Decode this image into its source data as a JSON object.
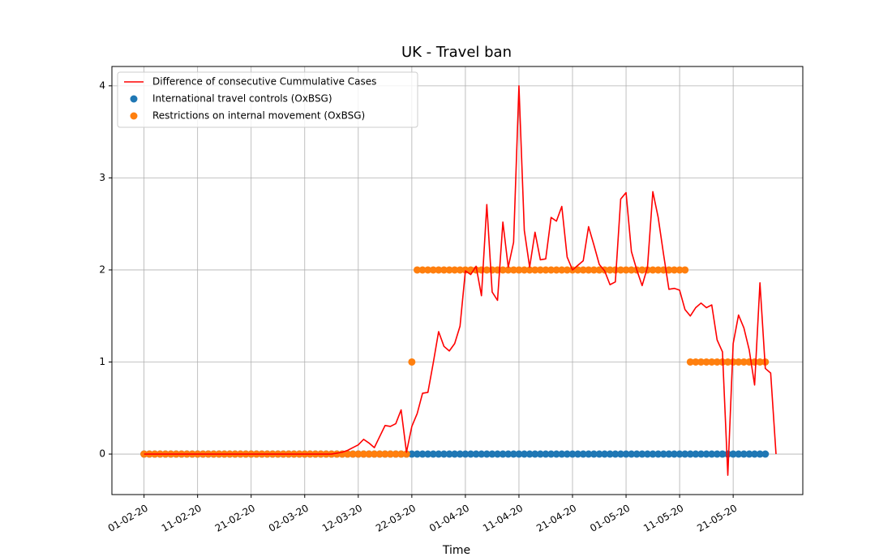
{
  "chart_data": {
    "type": "line",
    "title": "UK - Travel ban",
    "xlabel": "Time",
    "x": [
      "01-02-20",
      "02-02-20",
      "03-02-20",
      "04-02-20",
      "05-02-20",
      "06-02-20",
      "07-02-20",
      "08-02-20",
      "09-02-20",
      "10-02-20",
      "11-02-20",
      "12-02-20",
      "13-02-20",
      "14-02-20",
      "15-02-20",
      "16-02-20",
      "17-02-20",
      "18-02-20",
      "19-02-20",
      "20-02-20",
      "21-02-20",
      "22-02-20",
      "23-02-20",
      "24-02-20",
      "25-02-20",
      "26-02-20",
      "27-02-20",
      "28-02-20",
      "29-02-20",
      "01-03-20",
      "02-03-20",
      "03-03-20",
      "04-03-20",
      "05-03-20",
      "06-03-20",
      "07-03-20",
      "08-03-20",
      "09-03-20",
      "10-03-20",
      "11-03-20",
      "12-03-20",
      "13-03-20",
      "14-03-20",
      "15-03-20",
      "16-03-20",
      "17-03-20",
      "18-03-20",
      "19-03-20",
      "20-03-20",
      "21-03-20",
      "22-03-20",
      "23-03-20",
      "24-03-20",
      "25-03-20",
      "26-03-20",
      "27-03-20",
      "28-03-20",
      "29-03-20",
      "30-03-20",
      "31-03-20",
      "01-04-20",
      "02-04-20",
      "03-04-20",
      "04-04-20",
      "05-04-20",
      "06-04-20",
      "07-04-20",
      "08-04-20",
      "09-04-20",
      "10-04-20",
      "11-04-20",
      "12-04-20",
      "13-04-20",
      "14-04-20",
      "15-04-20",
      "16-04-20",
      "17-04-20",
      "18-04-20",
      "19-04-20",
      "20-04-20",
      "21-04-20",
      "22-04-20",
      "23-04-20",
      "24-04-20",
      "25-04-20",
      "26-04-20",
      "27-04-20",
      "28-04-20",
      "29-04-20",
      "30-04-20",
      "01-05-20",
      "02-05-20",
      "03-05-20",
      "04-05-20",
      "05-05-20",
      "06-05-20",
      "07-05-20",
      "08-05-20",
      "09-05-20",
      "10-05-20",
      "11-05-20",
      "12-05-20",
      "13-05-20",
      "14-05-20",
      "15-05-20",
      "16-05-20",
      "17-05-20",
      "18-05-20",
      "19-05-20",
      "20-05-20",
      "21-05-20",
      "22-05-20",
      "23-05-20",
      "24-05-20",
      "25-05-20",
      "26-05-20",
      "27-05-20",
      "28-05-20",
      "29-05-20"
    ],
    "series": [
      {
        "name": "Difference of consecutive Cummulative Cases",
        "type": "line",
        "color": "#ff0000",
        "values": [
          0,
          0,
          0,
          0,
          0,
          0,
          0,
          0,
          0,
          0,
          0,
          0,
          0,
          0,
          0,
          0,
          0,
          0,
          0,
          0,
          0,
          0,
          0,
          0,
          0,
          0,
          0,
          0,
          0,
          0,
          0,
          0,
          0,
          0,
          0,
          0,
          0.01,
          0.02,
          0.04,
          0.07,
          0.1,
          0.16,
          0.12,
          0.07,
          0.19,
          0.31,
          0.3,
          0.33,
          0.48,
          0.02,
          0.3,
          0.44,
          0.66,
          0.67,
          0.99,
          1.33,
          1.17,
          1.12,
          1.2,
          1.39,
          1.99,
          1.95,
          2.04,
          1.72,
          2.71,
          1.76,
          1.67,
          2.52,
          2.03,
          2.3,
          4.0,
          2.43,
          2.03,
          2.41,
          2.11,
          2.12,
          2.57,
          2.53,
          2.69,
          2.14,
          2.0,
          2.05,
          2.1,
          2.47,
          2.27,
          2.06,
          1.99,
          1.84,
          1.87,
          2.77,
          2.84,
          2.2,
          2.0,
          1.83,
          2.03,
          2.85,
          2.57,
          2.17,
          1.79,
          1.8,
          1.78,
          1.57,
          1.5,
          1.59,
          1.64,
          1.59,
          1.62,
          1.24,
          1.11,
          -0.23,
          1.2,
          1.51,
          1.37,
          1.13,
          0.75,
          1.86,
          0.93,
          0.88,
          0
        ]
      },
      {
        "name": "International travel controls (OxBSG)",
        "type": "scatter",
        "color": "#1f77b4",
        "values": [
          0,
          0,
          0,
          0,
          0,
          0,
          0,
          0,
          0,
          0,
          0,
          0,
          0,
          0,
          0,
          0,
          0,
          0,
          0,
          0,
          0,
          0,
          0,
          0,
          0,
          0,
          0,
          0,
          0,
          0,
          0,
          0,
          0,
          0,
          0,
          0,
          0,
          0,
          0,
          0,
          0,
          0,
          0,
          0,
          0,
          0,
          0,
          0,
          0,
          0,
          0,
          0,
          0,
          0,
          0,
          0,
          0,
          0,
          0,
          0,
          0,
          0,
          0,
          0,
          0,
          0,
          0,
          0,
          0,
          0,
          0,
          0,
          0,
          0,
          0,
          0,
          0,
          0,
          0,
          0,
          0,
          0,
          0,
          0,
          0,
          0,
          0,
          0,
          0,
          0,
          0,
          0,
          0,
          0,
          0,
          0,
          0,
          0,
          0,
          0,
          0,
          0,
          0,
          0,
          0,
          0,
          0,
          0,
          0,
          0,
          0,
          0,
          0,
          0,
          0,
          0,
          0,
          null,
          null
        ]
      },
      {
        "name": "Restrictions on internal movement (OxBSG)",
        "type": "scatter",
        "color": "#ff7f0e",
        "values": [
          0,
          0,
          0,
          0,
          0,
          0,
          0,
          0,
          0,
          0,
          0,
          0,
          0,
          0,
          0,
          0,
          0,
          0,
          0,
          0,
          0,
          0,
          0,
          0,
          0,
          0,
          0,
          0,
          0,
          0,
          0,
          0,
          0,
          0,
          0,
          0,
          0,
          0,
          0,
          0,
          0,
          0,
          0,
          0,
          0,
          0,
          0,
          0,
          0,
          0,
          1,
          2,
          2,
          2,
          2,
          2,
          2,
          2,
          2,
          2,
          2,
          2,
          2,
          2,
          2,
          2,
          2,
          2,
          2,
          2,
          2,
          2,
          2,
          2,
          2,
          2,
          2,
          2,
          2,
          2,
          2,
          2,
          2,
          2,
          2,
          2,
          2,
          2,
          2,
          2,
          2,
          2,
          2,
          2,
          2,
          2,
          2,
          2,
          2,
          2,
          2,
          2,
          1,
          1,
          1,
          1,
          1,
          1,
          1,
          1,
          1,
          1,
          1,
          1,
          1,
          1,
          1,
          null,
          null
        ]
      }
    ],
    "xlim": [
      "26-01-20",
      "03-06-20"
    ],
    "xticks": [
      "01-02-20",
      "11-02-20",
      "21-02-20",
      "02-03-20",
      "12-03-20",
      "22-03-20",
      "01-04-20",
      "11-04-20",
      "21-04-20",
      "01-05-20",
      "11-05-20",
      "21-05-20"
    ],
    "ylim": [
      -0.44,
      4.21
    ],
    "yticks": [
      0,
      1,
      2,
      3,
      4
    ],
    "grid": true,
    "legend": "upper-left"
  }
}
